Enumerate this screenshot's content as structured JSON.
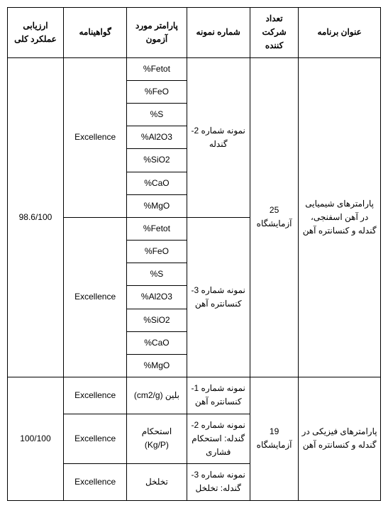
{
  "table": {
    "headers": {
      "program_title": "عنوان برنامه",
      "participants": "تعداد شرکت کننده",
      "sample_no": "شماره نمونه",
      "parameter": "پارامتر مورد آزمون",
      "certificate": "گواهینامه",
      "overall_eval": "ارزیابی عملکرد کلی"
    },
    "program1": {
      "title": "پارامترهای شیمیایی در آهن اسفنجی، گندله و کنسانتره آهن",
      "participants": "25 آزمایشگاه",
      "eval": "98.6/100",
      "sample2": {
        "title": "نمونه شماره 2- گندله",
        "certificate": "Excellence",
        "p1": "%Fetot",
        "p2": "%FeO",
        "p3": "%S",
        "p4": "%Al2O3",
        "p5": "%SiO2",
        "p6": "%CaO",
        "p7": "%MgO"
      },
      "sample3": {
        "title": "نمونه شماره 3- کنسانتره آهن",
        "certificate": "Excellence",
        "p1": "%Fetot",
        "p2": "%FeO",
        "p3": "%S",
        "p4": "%Al2O3",
        "p5": "%SiO2",
        "p6": "%CaO",
        "p7": "%MgO"
      }
    },
    "program2": {
      "title": "پارامترهای فیزیکی در گندله و کنسانتره آهن",
      "participants": "19 آزمایشگاه",
      "eval": "100/100",
      "row1": {
        "sample": "نمونه شماره 1- کنسانتره آهن",
        "param": "بلین (cm2/g)",
        "cert": "Excellence"
      },
      "row2": {
        "sample": "نمونه شماره 2- گندله: استحکام فشاری",
        "param": "استحکام (Kg/P)",
        "cert": "Excellence"
      },
      "row3": {
        "sample": "نمونه شماره 3- گندله: تخلخل",
        "param": "تخلخل",
        "cert": "Excellence"
      }
    }
  },
  "style": {
    "border_color": "#000000",
    "background_color": "#ffffff",
    "header_fontsize": 12,
    "cell_fontsize": 12,
    "font_family": "Tahoma"
  }
}
